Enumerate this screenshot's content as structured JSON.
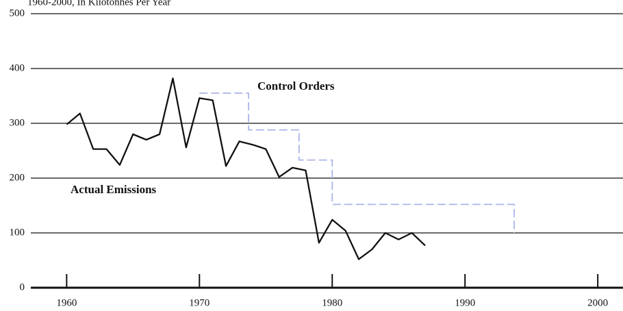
{
  "chart_data": {
    "type": "line",
    "subtitle": "1960-2000, In Kilotonnes Per Year",
    "xlim": [
      1957.3,
      2001.9
    ],
    "xticks": [
      1960,
      1970,
      1980,
      1990,
      2000
    ],
    "ylim": [
      0,
      500
    ],
    "yticks": [
      0,
      100,
      200,
      300,
      400,
      500
    ],
    "grid": true,
    "series": [
      {
        "name": "Actual Emissions",
        "color": "#111111",
        "dashed": false,
        "x": [
          1960,
          1961,
          1962,
          1963,
          1964,
          1965,
          1966,
          1967,
          1968,
          1969,
          1970,
          1971,
          1972,
          1973,
          1974,
          1975,
          1976,
          1977,
          1978,
          1979,
          1980,
          1981,
          1982,
          1983,
          1984,
          1985,
          1986,
          1987
        ],
        "values": [
          298,
          318,
          253,
          253,
          224,
          280,
          270,
          280,
          382,
          256,
          346,
          342,
          222,
          267,
          261,
          253,
          202,
          219,
          214,
          82,
          124,
          104,
          52,
          70,
          100,
          88,
          100,
          77
        ]
      },
      {
        "name": "Control Orders",
        "color": "#a9b4ea",
        "dashed": true,
        "x": [
          1970,
          1973.7,
          1973.7,
          1977.5,
          1977.5,
          1980,
          1980,
          1993.7,
          1993.7
        ],
        "values": [
          355,
          355,
          288,
          288,
          233,
          233,
          152,
          152,
          100
        ]
      }
    ]
  }
}
